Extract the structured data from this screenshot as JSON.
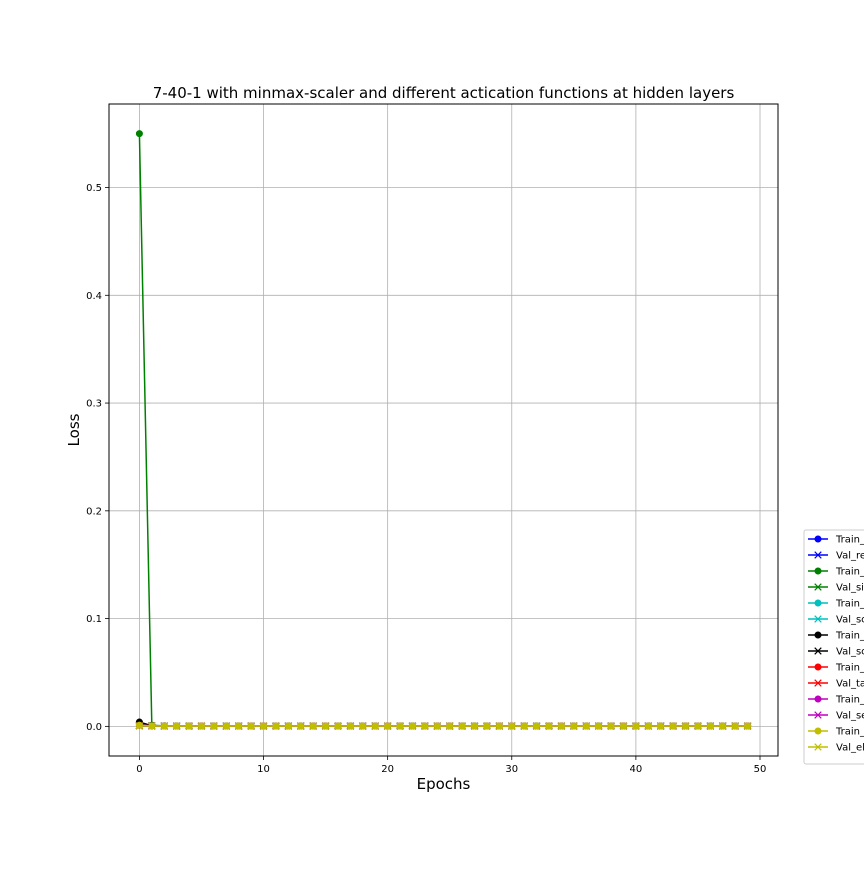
{
  "chart_data": {
    "type": "line",
    "title": "7-40-1 with minmax-scaler and different actication functions at hidden layers",
    "xlabel": "Epochs",
    "ylabel": "Loss",
    "xlim": [
      -2.45,
      51.45
    ],
    "ylim": [
      -0.0275,
      0.5775
    ],
    "xticks": [
      0,
      10,
      20,
      30,
      40,
      50
    ],
    "yticks": [
      0.0,
      0.1,
      0.2,
      0.3,
      0.4,
      0.5
    ],
    "xtick_labels": [
      "0",
      "10",
      "20",
      "30",
      "40",
      "50"
    ],
    "ytick_labels": [
      "0.0",
      "0.1",
      "0.2",
      "0.3",
      "0.4",
      "0.5"
    ],
    "grid": true,
    "legend_position": "lower-right, partially cut off outside the plot area",
    "x": [
      0,
      1,
      2,
      3,
      4,
      5,
      6,
      7,
      8,
      9,
      10,
      11,
      12,
      13,
      14,
      15,
      16,
      17,
      18,
      19,
      20,
      21,
      22,
      23,
      24,
      25,
      26,
      27,
      28,
      29,
      30,
      31,
      32,
      33,
      34,
      35,
      36,
      37,
      38,
      39,
      40,
      41,
      42,
      43,
      44,
      45,
      46,
      47,
      48,
      49
    ],
    "series": [
      {
        "name": "Train_",
        "color": "#0000ff",
        "marker": "o",
        "values": [
          0.002,
          0.0005,
          0.0004,
          0.0003,
          0.0003,
          0.0003,
          0.0003,
          0.0003,
          0.0003,
          0.0003,
          0.0003,
          0.0003,
          0.0003,
          0.0003,
          0.0003,
          0.0003,
          0.0003,
          0.0003,
          0.0003,
          0.0003,
          0.0003,
          0.0003,
          0.0003,
          0.0003,
          0.0003,
          0.0003,
          0.0003,
          0.0003,
          0.0003,
          0.0003,
          0.0003,
          0.0003,
          0.0003,
          0.0003,
          0.0003,
          0.0003,
          0.0003,
          0.0003,
          0.0003,
          0.0003,
          0.0003,
          0.0003,
          0.0003,
          0.0003,
          0.0003,
          0.0003,
          0.0003,
          0.0003,
          0.0003,
          0.0003
        ]
      },
      {
        "name": "Val_re",
        "color": "#0000ff",
        "marker": "x",
        "values": [
          0.0005,
          0.0004,
          0.0003,
          0.0003,
          0.0003,
          0.0003,
          0.0003,
          0.0003,
          0.0003,
          0.0003,
          0.0003,
          0.0003,
          0.0003,
          0.0003,
          0.0003,
          0.0003,
          0.0003,
          0.0003,
          0.0003,
          0.0003,
          0.0003,
          0.0003,
          0.0003,
          0.0003,
          0.0003,
          0.0003,
          0.0003,
          0.0003,
          0.0003,
          0.0003,
          0.0003,
          0.0003,
          0.0003,
          0.0003,
          0.0003,
          0.0003,
          0.0003,
          0.0003,
          0.0003,
          0.0003,
          0.0003,
          0.0003,
          0.0003,
          0.0003,
          0.0003,
          0.0003,
          0.0003,
          0.0003,
          0.0003,
          0.0003
        ]
      },
      {
        "name": "Train_",
        "color": "#008000",
        "marker": "o",
        "values": [
          0.55,
          0.001,
          0.0005,
          0.0004,
          0.0004,
          0.0004,
          0.0004,
          0.0004,
          0.0004,
          0.0004,
          0.0004,
          0.0004,
          0.0004,
          0.0004,
          0.0004,
          0.0004,
          0.0004,
          0.0004,
          0.0004,
          0.0004,
          0.0004,
          0.0004,
          0.0004,
          0.0004,
          0.0004,
          0.0004,
          0.0004,
          0.0004,
          0.0004,
          0.0004,
          0.0004,
          0.0004,
          0.0004,
          0.0004,
          0.0004,
          0.0004,
          0.0004,
          0.0004,
          0.0004,
          0.0004,
          0.0004,
          0.0004,
          0.0004,
          0.0004,
          0.0004,
          0.0004,
          0.0004,
          0.0004,
          0.0004,
          0.0004
        ]
      },
      {
        "name": "Val_si",
        "color": "#008000",
        "marker": "x",
        "values": [
          0.0008,
          0.0005,
          0.0004,
          0.0004,
          0.0004,
          0.0004,
          0.0004,
          0.0004,
          0.0004,
          0.0004,
          0.0004,
          0.0004,
          0.0004,
          0.0004,
          0.0004,
          0.0004,
          0.0004,
          0.0004,
          0.0004,
          0.0004,
          0.0004,
          0.0004,
          0.0004,
          0.0004,
          0.0004,
          0.0004,
          0.0004,
          0.0004,
          0.0004,
          0.0004,
          0.0004,
          0.0004,
          0.0004,
          0.0004,
          0.0004,
          0.0004,
          0.0004,
          0.0004,
          0.0004,
          0.0004,
          0.0004,
          0.0004,
          0.0004,
          0.0004,
          0.0004,
          0.0004,
          0.0004,
          0.0004,
          0.0004,
          0.0004
        ]
      },
      {
        "name": "Train_",
        "color": "#00bfbf",
        "marker": "o",
        "values": [
          0.001,
          0.0004,
          0.0003,
          0.0003,
          0.0003,
          0.0003,
          0.0003,
          0.0003,
          0.0003,
          0.0003,
          0.0003,
          0.0003,
          0.0003,
          0.0003,
          0.0003,
          0.0003,
          0.0003,
          0.0003,
          0.0003,
          0.0003,
          0.0003,
          0.0003,
          0.0003,
          0.0003,
          0.0003,
          0.0003,
          0.0003,
          0.0003,
          0.0003,
          0.0003,
          0.0003,
          0.0003,
          0.0003,
          0.0003,
          0.0003,
          0.0003,
          0.0003,
          0.0003,
          0.0003,
          0.0003,
          0.0003,
          0.0003,
          0.0003,
          0.0003,
          0.0003,
          0.0003,
          0.0003,
          0.0003,
          0.0003,
          0.0003
        ]
      },
      {
        "name": "Val_sc",
        "color": "#00bfbf",
        "marker": "x",
        "values": [
          0.0004,
          0.0003,
          0.0003,
          0.0003,
          0.0003,
          0.0003,
          0.0003,
          0.0003,
          0.0003,
          0.0003,
          0.0003,
          0.0003,
          0.0003,
          0.0003,
          0.0003,
          0.0003,
          0.0003,
          0.0003,
          0.0003,
          0.0003,
          0.0003,
          0.0003,
          0.0003,
          0.0003,
          0.0003,
          0.0003,
          0.0003,
          0.0003,
          0.0003,
          0.0003,
          0.0003,
          0.0003,
          0.0003,
          0.0003,
          0.0003,
          0.0003,
          0.0003,
          0.0003,
          0.0003,
          0.0003,
          0.0003,
          0.0003,
          0.0003,
          0.0003,
          0.0003,
          0.0003,
          0.0003,
          0.0003,
          0.0003,
          0.0003
        ]
      },
      {
        "name": "Train_",
        "color": "#000000",
        "marker": "o",
        "values": [
          0.004,
          0.0006,
          0.0004,
          0.0003,
          0.0003,
          0.0003,
          0.0003,
          0.0003,
          0.0003,
          0.0003,
          0.0003,
          0.0003,
          0.0003,
          0.0003,
          0.0003,
          0.0003,
          0.0003,
          0.0003,
          0.0003,
          0.0003,
          0.0003,
          0.0003,
          0.0003,
          0.0003,
          0.0003,
          0.0003,
          0.0003,
          0.0003,
          0.0003,
          0.0003,
          0.0003,
          0.0003,
          0.0003,
          0.0003,
          0.0003,
          0.0003,
          0.0003,
          0.0003,
          0.0003,
          0.0003,
          0.0003,
          0.0003,
          0.0003,
          0.0003,
          0.0003,
          0.0003,
          0.0003,
          0.0003,
          0.0003,
          0.0003
        ]
      },
      {
        "name": "Val_sc",
        "color": "#000000",
        "marker": "x",
        "values": [
          0.0006,
          0.0004,
          0.0003,
          0.0003,
          0.0003,
          0.0003,
          0.0003,
          0.0003,
          0.0003,
          0.0003,
          0.0003,
          0.0003,
          0.0003,
          0.0003,
          0.0003,
          0.0003,
          0.0003,
          0.0003,
          0.0003,
          0.0003,
          0.0003,
          0.0003,
          0.0003,
          0.0003,
          0.0003,
          0.0003,
          0.0003,
          0.0003,
          0.0003,
          0.0003,
          0.0003,
          0.0003,
          0.0003,
          0.0003,
          0.0003,
          0.0003,
          0.0003,
          0.0003,
          0.0003,
          0.0003,
          0.0003,
          0.0003,
          0.0003,
          0.0003,
          0.0003,
          0.0003,
          0.0003,
          0.0003,
          0.0003,
          0.0003
        ]
      },
      {
        "name": "Train_",
        "color": "#ff0000",
        "marker": "o",
        "values": [
          0.001,
          0.0004,
          0.0003,
          0.0003,
          0.0003,
          0.0003,
          0.0003,
          0.0003,
          0.0003,
          0.0003,
          0.0003,
          0.0003,
          0.0003,
          0.0003,
          0.0003,
          0.0003,
          0.0003,
          0.0003,
          0.0003,
          0.0003,
          0.0003,
          0.0003,
          0.0003,
          0.0003,
          0.0003,
          0.0003,
          0.0003,
          0.0003,
          0.0003,
          0.0003,
          0.0003,
          0.0003,
          0.0003,
          0.0003,
          0.0003,
          0.0003,
          0.0003,
          0.0003,
          0.0003,
          0.0003,
          0.0003,
          0.0003,
          0.0003,
          0.0003,
          0.0003,
          0.0003,
          0.0003,
          0.0003,
          0.0003,
          0.0003
        ]
      },
      {
        "name": "Val_ta",
        "color": "#ff0000",
        "marker": "x",
        "values": [
          0.0004,
          0.0003,
          0.0003,
          0.0003,
          0.0003,
          0.0003,
          0.0003,
          0.0003,
          0.0003,
          0.0003,
          0.0003,
          0.0003,
          0.0003,
          0.0003,
          0.0003,
          0.0003,
          0.0003,
          0.0003,
          0.0003,
          0.0003,
          0.0003,
          0.0003,
          0.0003,
          0.0003,
          0.0003,
          0.0003,
          0.0003,
          0.0003,
          0.0003,
          0.0003,
          0.0003,
          0.0003,
          0.0003,
          0.0003,
          0.0003,
          0.0003,
          0.0003,
          0.0003,
          0.0003,
          0.0003,
          0.0003,
          0.0003,
          0.0003,
          0.0003,
          0.0003,
          0.0003,
          0.0003,
          0.0003,
          0.0003,
          0.0003
        ]
      },
      {
        "name": "Train_",
        "color": "#bf00bf",
        "marker": "o",
        "values": [
          0.001,
          0.0004,
          0.0003,
          0.0003,
          0.0003,
          0.0003,
          0.0003,
          0.0003,
          0.0003,
          0.0003,
          0.0003,
          0.0003,
          0.0003,
          0.0003,
          0.0003,
          0.0003,
          0.0003,
          0.0003,
          0.0003,
          0.0003,
          0.0003,
          0.0003,
          0.0003,
          0.0003,
          0.0003,
          0.0003,
          0.0003,
          0.0003,
          0.0003,
          0.0003,
          0.0003,
          0.0003,
          0.0003,
          0.0003,
          0.0003,
          0.0003,
          0.0003,
          0.0003,
          0.0003,
          0.0003,
          0.0003,
          0.0003,
          0.0003,
          0.0003,
          0.0003,
          0.0003,
          0.0003,
          0.0003,
          0.0003,
          0.0003
        ]
      },
      {
        "name": "Val_se",
        "color": "#bf00bf",
        "marker": "x",
        "values": [
          0.0004,
          0.0003,
          0.0003,
          0.0003,
          0.0003,
          0.0003,
          0.0003,
          0.0003,
          0.0003,
          0.0003,
          0.0003,
          0.0003,
          0.0003,
          0.0003,
          0.0003,
          0.0003,
          0.0003,
          0.0003,
          0.0003,
          0.0003,
          0.0003,
          0.0003,
          0.0003,
          0.0003,
          0.0003,
          0.0003,
          0.0003,
          0.0003,
          0.0003,
          0.0003,
          0.0003,
          0.0003,
          0.0003,
          0.0003,
          0.0003,
          0.0003,
          0.0003,
          0.0003,
          0.0003,
          0.0003,
          0.0003,
          0.0003,
          0.0003,
          0.0003,
          0.0003,
          0.0003,
          0.0003,
          0.0003,
          0.0003,
          0.0003
        ]
      },
      {
        "name": "Train_",
        "color": "#bfbf00",
        "marker": "o",
        "values": [
          0.001,
          0.0004,
          0.0003,
          0.0003,
          0.0003,
          0.0003,
          0.0003,
          0.0003,
          0.0003,
          0.0003,
          0.0003,
          0.0003,
          0.0003,
          0.0003,
          0.0003,
          0.0003,
          0.0003,
          0.0003,
          0.0003,
          0.0003,
          0.0003,
          0.0003,
          0.0003,
          0.0003,
          0.0003,
          0.0003,
          0.0003,
          0.0003,
          0.0003,
          0.0003,
          0.0003,
          0.0003,
          0.0003,
          0.0003,
          0.0003,
          0.0003,
          0.0003,
          0.0003,
          0.0003,
          0.0003,
          0.0003,
          0.0003,
          0.0003,
          0.0003,
          0.0003,
          0.0003,
          0.0003,
          0.0003,
          0.0003,
          0.0003
        ]
      },
      {
        "name": "Val_el",
        "color": "#bfbf00",
        "marker": "x",
        "values": [
          0.0004,
          0.0003,
          0.0003,
          0.0003,
          0.0003,
          0.0003,
          0.0003,
          0.0003,
          0.0003,
          0.0003,
          0.0003,
          0.0003,
          0.0003,
          0.0003,
          0.0003,
          0.0003,
          0.0003,
          0.0003,
          0.0003,
          0.0003,
          0.0003,
          0.0003,
          0.0003,
          0.0003,
          0.0003,
          0.0003,
          0.0003,
          0.0003,
          0.0003,
          0.0003,
          0.0003,
          0.0003,
          0.0003,
          0.0003,
          0.0003,
          0.0003,
          0.0003,
          0.0003,
          0.0003,
          0.0003,
          0.0003,
          0.0003,
          0.0003,
          0.0003,
          0.0003,
          0.0003,
          0.0003,
          0.0003,
          0.0003,
          0.0003
        ]
      }
    ]
  }
}
